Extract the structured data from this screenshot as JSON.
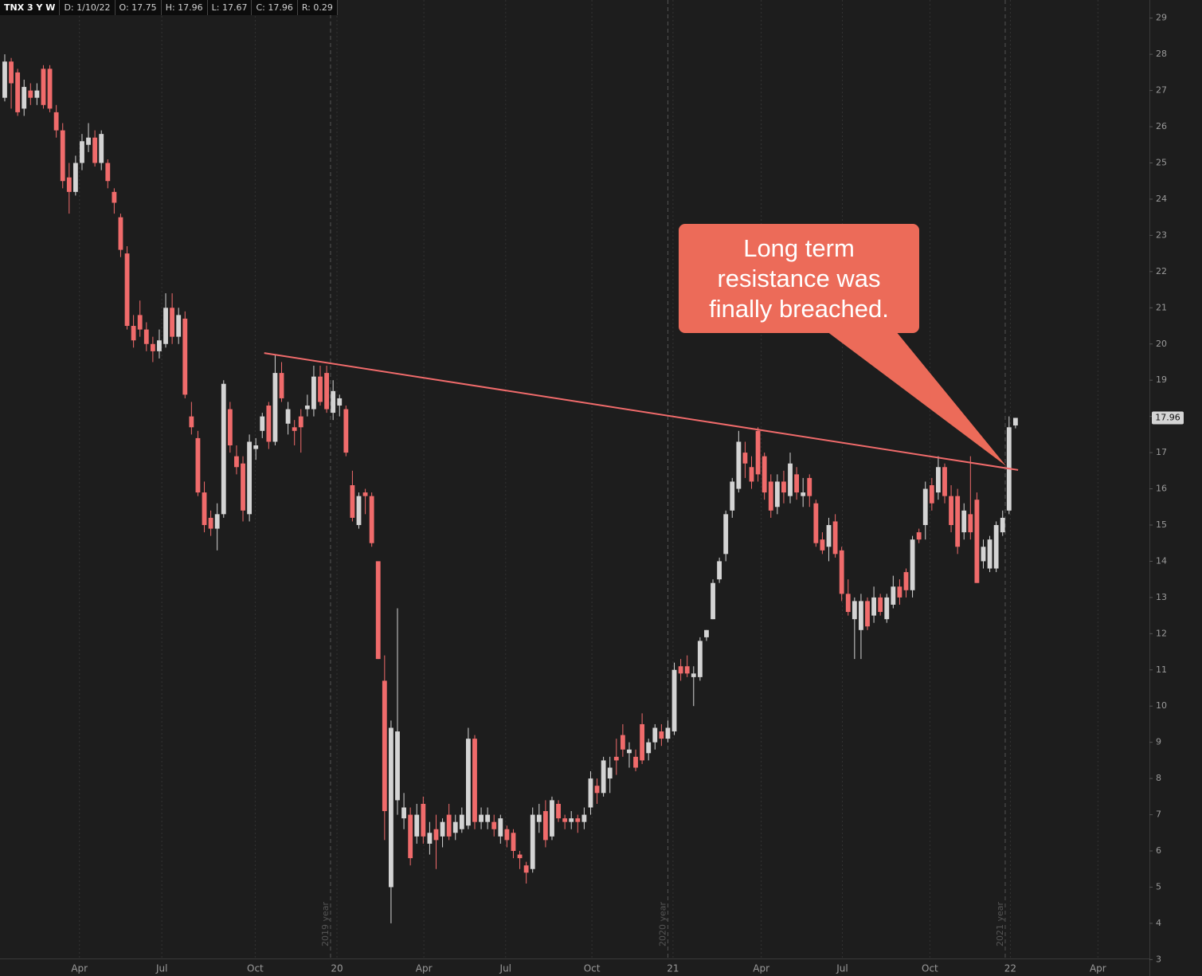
{
  "chart_data": {
    "type": "candlestick",
    "header": {
      "symbol": "TNX 3 Y W",
      "items": [
        "D: 1/10/22",
        "O: 17.75",
        "H: 17.96",
        "L: 17.67",
        "C: 17.96",
        "R: 0.29"
      ]
    },
    "annotation": "Long term resistance was finally breached.",
    "last_price": 17.96,
    "up_color": "#d4d4d4",
    "down_color": "#f06b6b",
    "trendline": {
      "color": "#f06b6b",
      "x": [
        40.3,
        157.4
      ],
      "values": [
        19.75,
        16.52
      ]
    },
    "xlim": [
      -0.74,
      177.8
    ],
    "ylim": [
      3.03,
      29.5
    ],
    "yticks": [
      3,
      4,
      5,
      6,
      7,
      8,
      9,
      10,
      11,
      12,
      13,
      14,
      15,
      16,
      17,
      18,
      19,
      20,
      21,
      22,
      23,
      24,
      25,
      26,
      27,
      28,
      29
    ],
    "xticks": [
      {
        "value": 11.6,
        "label": "Apr"
      },
      {
        "value": 24.4,
        "label": "Jul"
      },
      {
        "value": 38.9,
        "label": "Oct"
      },
      {
        "value": 51.6,
        "label": "20"
      },
      {
        "value": 65.1,
        "label": "Apr"
      },
      {
        "value": 77.8,
        "label": "Jul"
      },
      {
        "value": 91.2,
        "label": "Oct"
      },
      {
        "value": 103.8,
        "label": "21"
      },
      {
        "value": 117.5,
        "label": "Apr"
      },
      {
        "value": 130.1,
        "label": "Jul"
      },
      {
        "value": 143.7,
        "label": "Oct"
      },
      {
        "value": 156.2,
        "label": "22"
      },
      {
        "value": 169.8,
        "label": "Apr"
      }
    ],
    "year_separators": [
      {
        "value": 50.6,
        "label": "2019 year"
      },
      {
        "value": 103.0,
        "label": "2020 year"
      },
      {
        "value": 155.4,
        "label": "2021 year"
      }
    ],
    "ohlc": [
      [
        26.8,
        28.0,
        26.7,
        27.8
      ],
      [
        27.8,
        27.9,
        26.5,
        27.2
      ],
      [
        27.5,
        27.6,
        26.3,
        26.4
      ],
      [
        26.5,
        27.3,
        26.3,
        27.1
      ],
      [
        27.0,
        27.2,
        26.6,
        26.8
      ],
      [
        26.8,
        27.2,
        26.6,
        27.0
      ],
      [
        27.6,
        27.7,
        26.5,
        26.6
      ],
      [
        27.6,
        27.7,
        26.4,
        26.5
      ],
      [
        26.4,
        26.6,
        25.7,
        25.9
      ],
      [
        25.9,
        26.1,
        24.3,
        24.5
      ],
      [
        24.6,
        25.0,
        23.6,
        24.2
      ],
      [
        24.2,
        25.2,
        24.1,
        25.0
      ],
      [
        25.0,
        25.8,
        24.8,
        25.6
      ],
      [
        25.5,
        26.1,
        25.3,
        25.7
      ],
      [
        25.7,
        25.9,
        24.9,
        25.0
      ],
      [
        25.0,
        25.9,
        24.8,
        25.8
      ],
      [
        25.0,
        25.1,
        24.3,
        24.5
      ],
      [
        24.2,
        24.3,
        23.6,
        23.9
      ],
      [
        23.5,
        23.6,
        22.4,
        22.6
      ],
      [
        22.5,
        22.7,
        20.4,
        20.5
      ],
      [
        20.5,
        20.8,
        19.9,
        20.1
      ],
      [
        20.8,
        21.2,
        20.2,
        20.4
      ],
      [
        20.4,
        20.6,
        19.8,
        20.0
      ],
      [
        20.0,
        20.2,
        19.5,
        19.8
      ],
      [
        19.8,
        20.4,
        19.6,
        20.1
      ],
      [
        20.0,
        21.4,
        19.9,
        21.0
      ],
      [
        21.0,
        21.4,
        20.0,
        20.2
      ],
      [
        20.2,
        21.0,
        20.0,
        20.8
      ],
      [
        20.7,
        20.9,
        18.5,
        18.6
      ],
      [
        18.0,
        18.4,
        17.5,
        17.7
      ],
      [
        17.4,
        17.6,
        15.8,
        15.9
      ],
      [
        15.9,
        16.2,
        14.8,
        15.0
      ],
      [
        15.2,
        15.4,
        14.7,
        14.9
      ],
      [
        14.9,
        15.6,
        14.3,
        15.3
      ],
      [
        15.3,
        19.0,
        15.2,
        18.9
      ],
      [
        18.2,
        18.4,
        17.0,
        17.2
      ],
      [
        16.9,
        17.2,
        16.4,
        16.6
      ],
      [
        16.7,
        16.9,
        15.1,
        15.4
      ],
      [
        15.3,
        17.5,
        15.1,
        17.3
      ],
      [
        17.1,
        17.4,
        16.8,
        17.2
      ],
      [
        17.6,
        18.1,
        17.4,
        18.0
      ],
      [
        18.3,
        18.4,
        17.1,
        17.3
      ],
      [
        17.3,
        19.7,
        17.2,
        19.2
      ],
      [
        19.2,
        19.5,
        18.4,
        18.5
      ],
      [
        17.8,
        18.4,
        17.5,
        18.2
      ],
      [
        17.7,
        17.9,
        17.2,
        17.6
      ],
      [
        18.0,
        18.2,
        17.0,
        17.7
      ],
      [
        18.2,
        18.6,
        18.0,
        18.3
      ],
      [
        18.2,
        19.4,
        18.0,
        19.1
      ],
      [
        19.1,
        19.4,
        18.3,
        18.4
      ],
      [
        19.2,
        19.4,
        18.1,
        18.2
      ],
      [
        18.1,
        19.0,
        17.9,
        18.7
      ],
      [
        18.3,
        18.6,
        18.0,
        18.5
      ],
      [
        18.2,
        18.3,
        16.9,
        17.0
      ],
      [
        16.1,
        16.5,
        15.1,
        15.2
      ],
      [
        15.0,
        15.9,
        14.9,
        15.8
      ],
      [
        15.9,
        16.0,
        15.3,
        15.8
      ],
      [
        15.8,
        15.9,
        14.4,
        14.5
      ],
      [
        14.0,
        14.0,
        11.3,
        11.3
      ],
      [
        10.7,
        11.4,
        6.3,
        7.1
      ],
      [
        5.0,
        9.6,
        4.0,
        9.4
      ],
      [
        7.4,
        12.7,
        7.0,
        9.3
      ],
      [
        6.9,
        7.6,
        6.6,
        7.2
      ],
      [
        7.0,
        7.2,
        5.6,
        5.8
      ],
      [
        6.4,
        7.3,
        6.2,
        7.0
      ],
      [
        7.3,
        7.5,
        6.2,
        6.4
      ],
      [
        6.2,
        6.8,
        5.9,
        6.5
      ],
      [
        6.6,
        7.0,
        5.5,
        6.3
      ],
      [
        6.4,
        6.9,
        6.1,
        6.8
      ],
      [
        7.0,
        7.3,
        6.3,
        6.4
      ],
      [
        6.5,
        7.0,
        6.3,
        6.8
      ],
      [
        6.6,
        7.2,
        6.5,
        7.0
      ],
      [
        6.7,
        9.4,
        6.6,
        9.1
      ],
      [
        9.1,
        9.2,
        6.6,
        6.8
      ],
      [
        6.8,
        7.2,
        6.6,
        7.0
      ],
      [
        6.8,
        7.2,
        6.6,
        7.0
      ],
      [
        6.8,
        7.0,
        6.4,
        6.6
      ],
      [
        6.4,
        7.0,
        6.2,
        6.9
      ],
      [
        6.6,
        6.7,
        6.1,
        6.3
      ],
      [
        6.5,
        6.6,
        5.8,
        6.0
      ],
      [
        5.9,
        6.0,
        5.5,
        5.8
      ],
      [
        5.6,
        5.7,
        5.1,
        5.4
      ],
      [
        5.5,
        7.2,
        5.4,
        7.0
      ],
      [
        6.8,
        7.3,
        6.5,
        7.0
      ],
      [
        7.1,
        7.4,
        6.1,
        6.3
      ],
      [
        6.4,
        7.5,
        6.3,
        7.4
      ],
      [
        7.3,
        7.4,
        6.8,
        6.9
      ],
      [
        6.9,
        7.0,
        6.6,
        6.8
      ],
      [
        6.8,
        7.1,
        6.6,
        6.9
      ],
      [
        6.9,
        7.0,
        6.5,
        6.8
      ],
      [
        6.8,
        7.2,
        6.6,
        7.0
      ],
      [
        7.2,
        8.2,
        7.0,
        8.0
      ],
      [
        7.8,
        8.0,
        7.3,
        7.6
      ],
      [
        7.6,
        8.6,
        7.5,
        8.5
      ],
      [
        8.0,
        8.6,
        7.6,
        8.3
      ],
      [
        8.6,
        9.1,
        8.1,
        8.5
      ],
      [
        9.2,
        9.5,
        8.6,
        8.8
      ],
      [
        8.7,
        9.0,
        8.3,
        8.8
      ],
      [
        8.6,
        8.8,
        8.2,
        8.3
      ],
      [
        9.5,
        9.8,
        8.4,
        8.5
      ],
      [
        8.7,
        9.1,
        8.5,
        9.0
      ],
      [
        9.0,
        9.5,
        8.8,
        9.4
      ],
      [
        9.3,
        9.5,
        8.9,
        9.1
      ],
      [
        9.1,
        9.6,
        9.0,
        9.4
      ],
      [
        9.3,
        11.2,
        9.2,
        11.0
      ],
      [
        11.1,
        11.3,
        10.7,
        10.9
      ],
      [
        11.1,
        11.4,
        10.8,
        10.9
      ],
      [
        10.8,
        11.1,
        10.0,
        10.9
      ],
      [
        10.8,
        11.9,
        10.7,
        11.8
      ],
      [
        11.9,
        12.1,
        11.8,
        12.1
      ],
      [
        12.4,
        13.5,
        12.4,
        13.4
      ],
      [
        13.5,
        14.1,
        13.4,
        14.0
      ],
      [
        14.2,
        15.4,
        14.0,
        15.3
      ],
      [
        15.4,
        16.3,
        15.2,
        16.2
      ],
      [
        16.0,
        17.6,
        15.9,
        17.3
      ],
      [
        17.0,
        17.3,
        16.3,
        16.7
      ],
      [
        16.6,
        16.9,
        16.0,
        16.2
      ],
      [
        17.6,
        17.7,
        16.2,
        16.4
      ],
      [
        16.9,
        17.0,
        15.7,
        15.9
      ],
      [
        16.2,
        16.4,
        15.2,
        15.4
      ],
      [
        15.5,
        16.4,
        15.3,
        16.2
      ],
      [
        16.2,
        16.5,
        15.6,
        15.9
      ],
      [
        15.8,
        17.0,
        15.6,
        16.7
      ],
      [
        16.4,
        16.6,
        15.7,
        15.9
      ],
      [
        15.8,
        16.3,
        15.5,
        15.9
      ],
      [
        16.3,
        16.4,
        15.5,
        15.8
      ],
      [
        15.6,
        15.7,
        14.4,
        14.5
      ],
      [
        14.6,
        14.8,
        14.2,
        14.3
      ],
      [
        14.4,
        15.2,
        14.0,
        15.0
      ],
      [
        15.1,
        15.3,
        14.1,
        14.2
      ],
      [
        14.3,
        14.4,
        12.9,
        13.1
      ],
      [
        13.1,
        13.5,
        12.5,
        12.6
      ],
      [
        12.4,
        13.0,
        11.3,
        12.9
      ],
      [
        12.1,
        13.1,
        11.3,
        12.9
      ],
      [
        12.9,
        13.0,
        12.1,
        12.2
      ],
      [
        12.5,
        13.3,
        12.3,
        13.0
      ],
      [
        13.0,
        13.1,
        12.5,
        12.6
      ],
      [
        12.4,
        13.1,
        12.3,
        13.0
      ],
      [
        12.8,
        13.6,
        12.7,
        13.3
      ],
      [
        13.3,
        13.5,
        12.8,
        13.0
      ],
      [
        13.7,
        13.8,
        13.0,
        13.2
      ],
      [
        13.2,
        14.7,
        13.0,
        14.6
      ],
      [
        14.8,
        14.9,
        14.5,
        14.6
      ],
      [
        15.0,
        16.2,
        14.6,
        16.0
      ],
      [
        16.1,
        16.3,
        15.4,
        15.6
      ],
      [
        15.9,
        16.9,
        15.7,
        16.6
      ],
      [
        16.6,
        16.7,
        15.6,
        15.8
      ],
      [
        15.8,
        16.1,
        14.8,
        15.0
      ],
      [
        15.8,
        16.0,
        14.2,
        14.4
      ],
      [
        14.8,
        15.6,
        14.6,
        15.4
      ],
      [
        15.3,
        16.9,
        14.6,
        14.8
      ],
      [
        15.7,
        15.9,
        13.4,
        13.4
      ],
      [
        14.0,
        14.6,
        13.8,
        14.4
      ],
      [
        13.8,
        14.7,
        13.7,
        14.6
      ],
      [
        13.8,
        15.1,
        13.7,
        15.0
      ],
      [
        14.8,
        15.4,
        14.7,
        15.2
      ],
      [
        15.4,
        18.0,
        15.3,
        17.7
      ],
      [
        17.75,
        17.96,
        17.67,
        17.96
      ]
    ]
  }
}
